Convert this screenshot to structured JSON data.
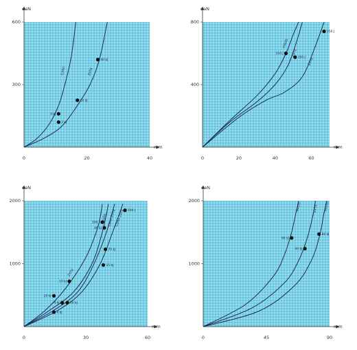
{
  "chart_data": [
    {
      "type": "line",
      "xlabel": "mm",
      "ylabel": "daN",
      "xlim": [
        0,
        40
      ],
      "ylim": [
        0,
        600
      ],
      "x_ticks": [
        "0",
        "20",
        "40"
      ],
      "y_ticks": [
        "300",
        "600"
      ],
      "grid": true,
      "series": [
        {
          "name": "C/HVI",
          "x": [
            0,
            4,
            8,
            11,
            13,
            15,
            16.5
          ],
          "y": [
            0,
            40,
            110,
            200,
            300,
            430,
            600
          ]
        },
        {
          "name": "ZVTE",
          "x": [
            0,
            6,
            12,
            17,
            21,
            24,
            26.5
          ],
          "y": [
            0,
            40,
            100,
            200,
            300,
            420,
            600
          ]
        }
      ],
      "points": [
        {
          "label": "4 kJ",
          "x": 11,
          "y": 160
        },
        {
          "label": "2 kJ",
          "x": 11,
          "y": 120
        },
        {
          "label": "10 kJ",
          "x": 17,
          "y": 225
        },
        {
          "label": "40 kJ",
          "x": 23.5,
          "y": 420
        }
      ]
    },
    {
      "type": "line",
      "xlabel": "mm",
      "ylabel": "daN",
      "xlim": [
        0,
        70
      ],
      "ylim": [
        0,
        800
      ],
      "x_ticks": [
        "0",
        "20",
        "40",
        "60"
      ],
      "y_ticks": [
        "400",
        "800"
      ],
      "grid": true,
      "series": [
        {
          "name": "HVI/IS",
          "x": [
            0,
            15,
            30,
            40,
            46,
            50,
            53
          ],
          "y": [
            0,
            170,
            330,
            470,
            600,
            720,
            800
          ]
        },
        {
          "name": "ZVTE",
          "x": [
            0,
            15,
            30,
            40,
            47,
            52,
            55
          ],
          "y": [
            0,
            160,
            290,
            400,
            520,
            680,
            800
          ]
        },
        {
          "name": "ZVTE",
          "x": [
            0,
            20,
            35,
            45,
            55,
            62,
            67
          ],
          "y": [
            0,
            190,
            300,
            350,
            450,
            640,
            800
          ]
        }
      ],
      "points": [
        {
          "label": "150 J",
          "x": 46,
          "y": 600
        },
        {
          "label": "150 J",
          "x": 51,
          "y": 575
        },
        {
          "label": "150 J",
          "x": 67,
          "y": 740
        }
      ]
    },
    {
      "type": "line",
      "xlabel": "mm",
      "ylabel": "daN",
      "xlim": [
        0,
        60
      ],
      "ylim": [
        0,
        2000
      ],
      "x_ticks": [
        "0",
        "30",
        "60"
      ],
      "y_ticks": [
        "1000",
        "2000"
      ],
      "grid": true,
      "series": [
        {
          "name": "ZVTE",
          "x": [
            0,
            10,
            20,
            30,
            36,
            38
          ],
          "y": [
            0,
            250,
            600,
            1100,
            1600,
            1950
          ]
        },
        {
          "name": "ZVTE",
          "x": [
            0,
            12,
            24,
            33,
            38,
            41
          ],
          "y": [
            0,
            250,
            550,
            1000,
            1500,
            1950
          ]
        },
        {
          "name": "C/HVI ZVTE",
          "x": [
            0,
            14,
            26,
            34,
            40,
            44
          ],
          "y": [
            0,
            250,
            550,
            1000,
            1500,
            1950
          ]
        },
        {
          "name": "C/HVI ZVTE",
          "x": [
            0,
            16,
            28,
            37,
            43,
            48
          ],
          "y": [
            0,
            250,
            550,
            1000,
            1500,
            1950
          ]
        }
      ],
      "points": [
        {
          "label": "100 J",
          "x": 38,
          "y": 1660
        },
        {
          "label": "40 kJ",
          "x": 39,
          "y": 1570
        },
        {
          "label": "100 J",
          "x": 49,
          "y": 1850
        },
        {
          "label": "70 kJ",
          "x": 39.5,
          "y": 1230
        },
        {
          "label": "15 kJ",
          "x": 38.5,
          "y": 980
        },
        {
          "label": "10 kJ",
          "x": 22,
          "y": 720
        },
        {
          "label": "20 kJ",
          "x": 14.5,
          "y": 490
        },
        {
          "label": "4 kJ",
          "x": 18.5,
          "y": 380
        },
        {
          "label": "10 kJ",
          "x": 21,
          "y": 380
        },
        {
          "label": "4 kJ",
          "x": 14.5,
          "y": 230
        }
      ]
    },
    {
      "type": "line",
      "xlabel": "mm",
      "ylabel": "daN",
      "xlim": [
        0,
        90
      ],
      "ylim": [
        0,
        2000
      ],
      "x_ticks": [
        "0",
        "45",
        "90"
      ],
      "y_ticks": [
        "1000",
        "2000"
      ],
      "grid": true,
      "series": [
        {
          "name": "HVI/IS",
          "x": [
            0,
            30,
            50,
            58,
            63,
            66,
            68
          ],
          "y": [
            0,
            350,
            800,
            1150,
            1500,
            1800,
            2000
          ]
        },
        {
          "name": "ZVTE",
          "x": [
            0,
            35,
            58,
            68,
            74,
            78,
            80
          ],
          "y": [
            0,
            300,
            700,
            1050,
            1400,
            1750,
            2000
          ]
        },
        {
          "name": "HVI/IS",
          "x": [
            0,
            40,
            65,
            77,
            83,
            86,
            88
          ],
          "y": [
            0,
            250,
            650,
            1050,
            1450,
            1800,
            2000
          ]
        }
      ],
      "points": [
        {
          "label": "60 kJ",
          "x": 63,
          "y": 1410
        },
        {
          "label": "40 kJ",
          "x": 72.5,
          "y": 1240
        },
        {
          "label": "80 kJ",
          "x": 82.5,
          "y": 1470
        }
      ]
    }
  ]
}
